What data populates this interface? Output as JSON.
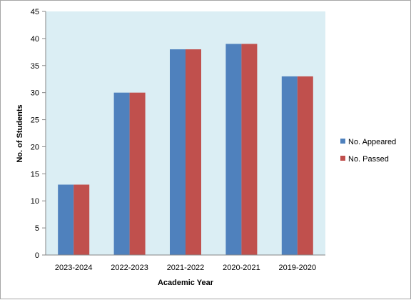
{
  "chart_data": {
    "type": "bar",
    "categories": [
      "2023-2024",
      "2022-2023",
      "2021-2022",
      "2020-2021",
      "2019-2020"
    ],
    "series": [
      {
        "name": "No. Appeared",
        "values": [
          13,
          30,
          38,
          39,
          33
        ],
        "color": "#4f81bd"
      },
      {
        "name": "No. Passed",
        "values": [
          13,
          30,
          38,
          39,
          33
        ],
        "color": "#c0504d"
      }
    ],
    "xlabel": "Academic Year",
    "ylabel": "No. of Students",
    "ylim": [
      0,
      45
    ],
    "yticks": [
      0,
      5,
      10,
      15,
      20,
      25,
      30,
      35,
      40,
      45
    ],
    "grid": false,
    "legend_position": "right",
    "plot_background": "#dbeef4"
  }
}
